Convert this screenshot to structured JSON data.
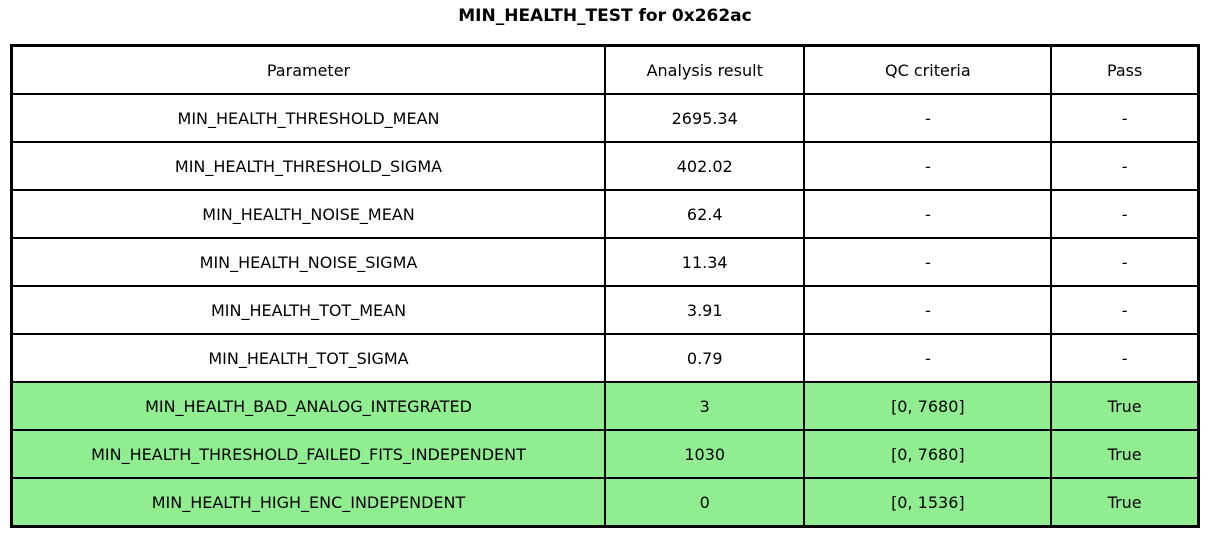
{
  "title": "MIN_HEALTH_TEST for 0x262ac",
  "colors": {
    "highlight_green": "#90ee90",
    "border": "#000000",
    "background": "#ffffff"
  },
  "chart_data": {
    "type": "table",
    "title": "MIN_HEALTH_TEST for 0x262ac",
    "columns": [
      "Parameter",
      "Analysis result",
      "QC criteria",
      "Pass"
    ],
    "rows": [
      [
        "MIN_HEALTH_THRESHOLD_MEAN",
        "2695.34",
        "-",
        "-"
      ],
      [
        "MIN_HEALTH_THRESHOLD_SIGMA",
        "402.02",
        "-",
        "-"
      ],
      [
        "MIN_HEALTH_NOISE_MEAN",
        "62.4",
        "-",
        "-"
      ],
      [
        "MIN_HEALTH_NOISE_SIGMA",
        "11.34",
        "-",
        "-"
      ],
      [
        "MIN_HEALTH_TOT_MEAN",
        "3.91",
        "-",
        "-"
      ],
      [
        "MIN_HEALTH_TOT_SIGMA",
        "0.79",
        "-",
        "-"
      ],
      [
        "MIN_HEALTH_BAD_ANALOG_INTEGRATED",
        "3",
        "[0, 7680]",
        "True"
      ],
      [
        "MIN_HEALTH_THRESHOLD_FAILED_FITS_INDEPENDENT",
        "1030",
        "[0, 7680]",
        "True"
      ],
      [
        "MIN_HEALTH_HIGH_ENC_INDEPENDENT",
        "0",
        "[0, 1536]",
        "True"
      ]
    ],
    "row_highlight": [
      false,
      false,
      false,
      false,
      false,
      false,
      true,
      true,
      true
    ],
    "highlight_color": "#90ee90",
    "legend_position": "none",
    "grid": true
  }
}
